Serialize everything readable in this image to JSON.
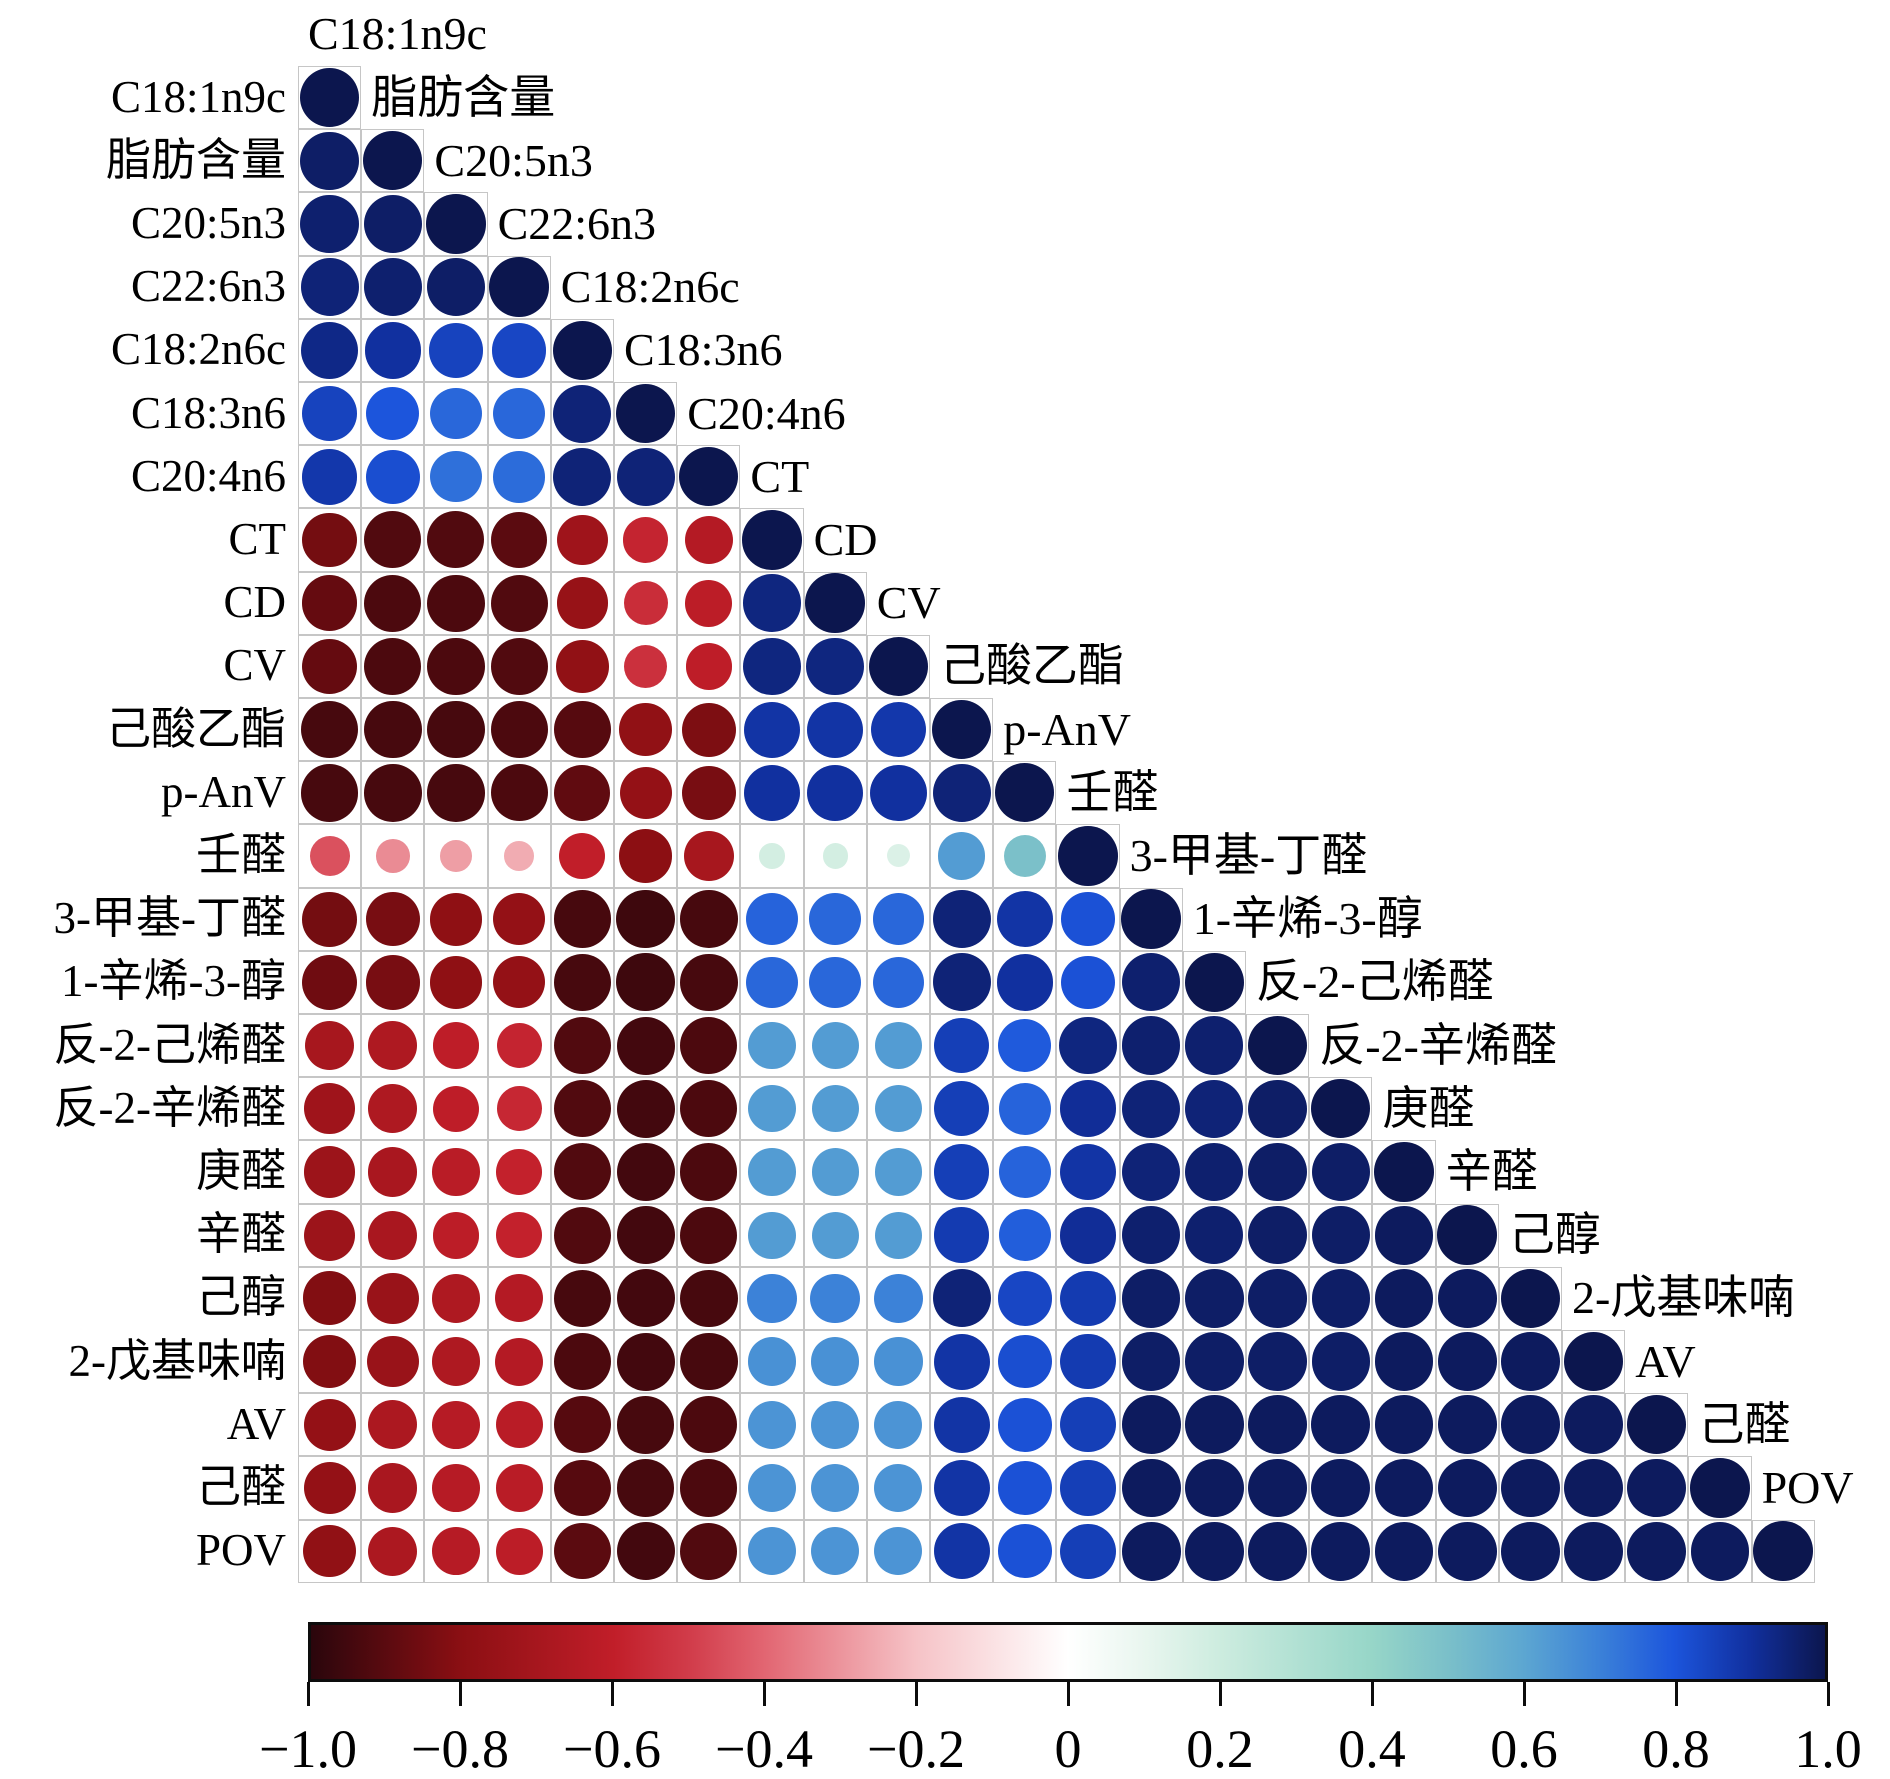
{
  "chart_data": {
    "type": "heatmap",
    "subtype": "correlation-matrix-lower-triangle-circles",
    "title": "",
    "legend_position": "bottom-colorbar",
    "grid": "on",
    "variables": [
      "C18:1n9c",
      "脂肪含量",
      "C20:5n3",
      "C22:6n3",
      "C18:2n6c",
      "C18:3n6",
      "C20:4n6",
      "CT",
      "CD",
      "CV",
      "己酸乙酯",
      "p-AnV",
      "壬醛",
      "3-甲基-丁醛",
      "1-辛烯-3-醇",
      "反-2-己烯醛",
      "反-2-辛烯醛",
      "庚醛",
      "辛醛",
      "己醇",
      "2-戊基味喃",
      "AV",
      "己醛",
      "POV"
    ],
    "matrix_lower_triangle_with_diagonal": [
      [
        1.0
      ],
      [
        0.97,
        1.0
      ],
      [
        0.96,
        0.97,
        1.0
      ],
      [
        0.95,
        0.96,
        0.97,
        1.0
      ],
      [
        0.93,
        0.9,
        0.85,
        0.84,
        1.0
      ],
      [
        0.85,
        0.8,
        0.76,
        0.76,
        0.95,
        1.0
      ],
      [
        0.88,
        0.82,
        0.74,
        0.75,
        0.95,
        0.95,
        1.0
      ],
      [
        -0.85,
        -0.92,
        -0.92,
        -0.9,
        -0.73,
        -0.58,
        -0.65,
        1.0
      ],
      [
        -0.88,
        -0.93,
        -0.93,
        -0.92,
        -0.76,
        -0.55,
        -0.62,
        0.94,
        1.0
      ],
      [
        -0.88,
        -0.93,
        -0.93,
        -0.92,
        -0.78,
        -0.54,
        -0.61,
        0.94,
        0.94,
        1.0
      ],
      [
        -0.94,
        -0.94,
        -0.94,
        -0.93,
        -0.91,
        -0.78,
        -0.83,
        0.89,
        0.89,
        0.88,
        1.0
      ],
      [
        -0.94,
        -0.94,
        -0.94,
        -0.93,
        -0.89,
        -0.77,
        -0.84,
        0.9,
        0.9,
        0.9,
        0.95,
        1.0
      ],
      [
        -0.45,
        -0.32,
        -0.28,
        -0.25,
        -0.6,
        -0.8,
        -0.7,
        0.18,
        0.18,
        0.15,
        0.63,
        0.5,
        1.0
      ],
      [
        -0.85,
        -0.84,
        -0.79,
        -0.77,
        -0.94,
        -0.96,
        -0.94,
        0.77,
        0.76,
        0.76,
        0.95,
        0.89,
        0.81,
        1.0
      ],
      [
        -0.86,
        -0.84,
        -0.79,
        -0.77,
        -0.94,
        -0.96,
        -0.94,
        0.76,
        0.76,
        0.76,
        0.95,
        0.9,
        0.81,
        0.96,
        1.0
      ],
      [
        -0.7,
        -0.67,
        -0.61,
        -0.58,
        -0.92,
        -0.95,
        -0.93,
        0.63,
        0.63,
        0.63,
        0.86,
        0.79,
        0.94,
        0.96,
        0.96,
        1.0
      ],
      [
        -0.73,
        -0.67,
        -0.61,
        -0.57,
        -0.92,
        -0.95,
        -0.93,
        0.63,
        0.63,
        0.63,
        0.86,
        0.77,
        0.91,
        0.95,
        0.95,
        0.97,
        1.0
      ],
      [
        -0.74,
        -0.69,
        -0.63,
        -0.59,
        -0.92,
        -0.95,
        -0.93,
        0.63,
        0.63,
        0.63,
        0.86,
        0.77,
        0.89,
        0.95,
        0.96,
        0.97,
        0.97,
        1.0
      ],
      [
        -0.74,
        -0.69,
        -0.62,
        -0.59,
        -0.92,
        -0.95,
        -0.93,
        0.63,
        0.63,
        0.63,
        0.87,
        0.78,
        0.91,
        0.96,
        0.96,
        0.97,
        0.97,
        0.98,
        1.0
      ],
      [
        -0.82,
        -0.75,
        -0.67,
        -0.65,
        -0.94,
        -0.95,
        -0.94,
        0.7,
        0.7,
        0.7,
        0.95,
        0.84,
        0.87,
        0.97,
        0.97,
        0.97,
        0.97,
        0.98,
        0.98,
        1.0
      ],
      [
        -0.82,
        -0.75,
        -0.67,
        -0.65,
        -0.93,
        -0.95,
        -0.94,
        0.66,
        0.66,
        0.66,
        0.89,
        0.82,
        0.87,
        0.97,
        0.97,
        0.97,
        0.97,
        0.98,
        0.98,
        0.98,
        1.0
      ],
      [
        -0.77,
        -0.68,
        -0.64,
        -0.63,
        -0.91,
        -0.94,
        -0.93,
        0.65,
        0.65,
        0.65,
        0.89,
        0.81,
        0.86,
        0.98,
        0.98,
        0.98,
        0.98,
        0.98,
        0.98,
        0.98,
        0.98,
        1.0
      ],
      [
        -0.77,
        -0.69,
        -0.64,
        -0.63,
        -0.91,
        -0.94,
        -0.93,
        0.65,
        0.65,
        0.65,
        0.89,
        0.81,
        0.86,
        0.98,
        0.98,
        0.98,
        0.98,
        0.98,
        0.98,
        0.98,
        0.98,
        0.98,
        1.0
      ],
      [
        -0.78,
        -0.68,
        -0.64,
        -0.62,
        -0.9,
        -0.95,
        -0.92,
        0.65,
        0.65,
        0.65,
        0.89,
        0.81,
        0.86,
        0.98,
        0.98,
        0.98,
        0.98,
        0.98,
        0.98,
        0.98,
        0.98,
        0.98,
        0.98,
        1.0
      ]
    ],
    "colormap_stops": [
      {
        "value": -1.0,
        "color": "#2a060c"
      },
      {
        "value": -0.8,
        "color": "#8c0f13"
      },
      {
        "value": -0.6,
        "color": "#c11e29"
      },
      {
        "value": -0.5,
        "color": "#d13c4a"
      },
      {
        "value": -0.4,
        "color": "#e26672"
      },
      {
        "value": -0.2,
        "color": "#f6c3c7"
      },
      {
        "value": 0.0,
        "color": "#ffffff"
      },
      {
        "value": 0.1,
        "color": "#e9f6ef"
      },
      {
        "value": 0.2,
        "color": "#cdecdf"
      },
      {
        "value": 0.4,
        "color": "#97d6c8"
      },
      {
        "value": 0.5,
        "color": "#7bc0c9"
      },
      {
        "value": 0.6,
        "color": "#5da7d1"
      },
      {
        "value": 0.7,
        "color": "#3c82d8"
      },
      {
        "value": 0.8,
        "color": "#1c55dc"
      },
      {
        "value": 0.9,
        "color": "#11309f"
      },
      {
        "value": 1.0,
        "color": "#0c164e"
      }
    ],
    "colorbar": {
      "range": [
        -1,
        1
      ],
      "tick_values": [
        -1.0,
        -0.8,
        -0.6,
        -0.4,
        -0.2,
        0,
        0.2,
        0.4,
        0.6,
        0.8,
        1.0
      ],
      "tick_labels": [
        "−1.0",
        "−0.8",
        "−0.6",
        "−0.4",
        "−0.2",
        "0",
        "0.2",
        "0.4",
        "0.6",
        "0.8",
        "1.0"
      ]
    },
    "style": {
      "grid_line_color": "#c6c6c6",
      "cell_background": "#ffffff",
      "label_color": "#000000",
      "colorbar_border_color": "#0d0d0d"
    }
  }
}
